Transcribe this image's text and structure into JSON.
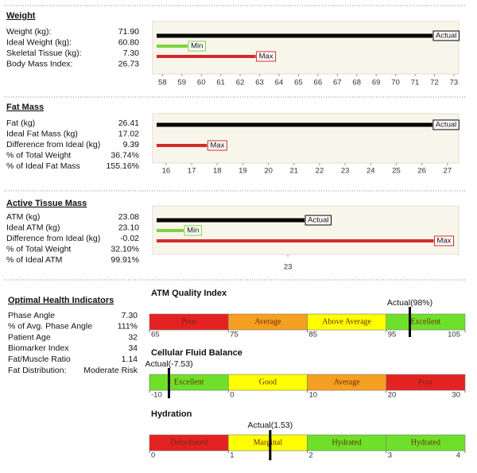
{
  "sections": [
    {
      "title": "Weight",
      "rows": [
        {
          "label": "Weight (kg):",
          "value": "71.90"
        },
        {
          "label": "Ideal Weight (kg):",
          "value": "60.80"
        },
        {
          "label": "Skeletal Tissue (kg):",
          "value": "7.30"
        },
        {
          "label": "Body Mass Index:",
          "value": "26.73"
        }
      ],
      "bars": [
        {
          "label": "Actual",
          "value": 71.9,
          "color": "#000000"
        },
        {
          "label": "Min",
          "value": 59.3,
          "color": "#7dd33a"
        },
        {
          "label": "Max",
          "value": 62.8,
          "color": "#d42a2a"
        }
      ],
      "xlim": [
        57.7,
        73.25
      ],
      "xticks": [
        58,
        59,
        60,
        61,
        62,
        63,
        64,
        65,
        66,
        67,
        68,
        69,
        70,
        71,
        72,
        73
      ]
    },
    {
      "title": "Fat Mass",
      "rows": [
        {
          "label": "Fat (kg)",
          "value": "26.41"
        },
        {
          "label": "Ideal Fat Mass (kg)",
          "value": "17.02"
        },
        {
          "label": "Difference from Ideal (kg)",
          "value": "9.39"
        },
        {
          "label": "% of Total Weight",
          "value": "36.74%"
        },
        {
          "label": "% of Ideal Fat Mass",
          "value": "155.16%"
        }
      ],
      "bars": [
        {
          "label": "Actual",
          "value": 26.41,
          "color": "#000000"
        },
        {
          "label": "Max",
          "value": 17.6,
          "color": "#d42a2a"
        }
      ],
      "xlim": [
        15.63,
        27.44
      ],
      "xticks": [
        16,
        17,
        18,
        19,
        20,
        21,
        22,
        23,
        24,
        25,
        26,
        27
      ]
    },
    {
      "title": "Active Tissue Mass",
      "rows": [
        {
          "label": "ATM (kg)",
          "value": "23.08"
        },
        {
          "label": "Ideal ATM (kg)",
          "value": "23.10"
        },
        {
          "label": "Difference from Ideal (kg)",
          "value": "-0.02"
        },
        {
          "label": "% of Total Weight",
          "value": "32.10%"
        },
        {
          "label": "% of Ideal ATM",
          "value": "99.91%"
        }
      ],
      "bars": [
        {
          "label": "Actual",
          "value": 23.08,
          "color": "#000000"
        },
        {
          "label": "Min",
          "value": 22.5,
          "color": "#7dd33a"
        },
        {
          "label": "Max",
          "value": 23.7,
          "color": "#d42a2a"
        }
      ],
      "xlim": [
        22.37,
        23.82
      ],
      "xticks": [
        23
      ]
    }
  ],
  "health": {
    "title": "Optimal Health Indicators",
    "rows": [
      {
        "label": "Phase Angle",
        "value": "7.30"
      },
      {
        "label": "% of Avg. Phase Angle",
        "value": "111%"
      },
      {
        "label": "Patient Age",
        "value": "32"
      },
      {
        "label": "Biomarker Index",
        "value": "34"
      },
      {
        "label": "Fat/Muscle Ratio",
        "value": "1.14"
      },
      {
        "label": "Fat Distribution:",
        "value": "Moderate Risk"
      }
    ]
  },
  "gauges": [
    {
      "title": "ATM Quality Index",
      "marker": {
        "value": 98,
        "label": "Actual(98%)"
      },
      "bands": [
        {
          "label": "Poor",
          "from": 65,
          "to": 75,
          "color": "#e52222"
        },
        {
          "label": "Average",
          "from": 75,
          "to": 85,
          "color": "#f5a021"
        },
        {
          "label": "Above Average",
          "from": 85,
          "to": 95,
          "color": "#ffff00"
        },
        {
          "label": "Excellent",
          "from": 95,
          "to": 105,
          "color": "#6ee02a"
        }
      ],
      "xlim": [
        65,
        105
      ],
      "xticks": [
        65,
        75,
        85,
        95,
        105
      ]
    },
    {
      "title": "Cellular Fluid Balance",
      "marker": {
        "value": -7.53,
        "label": "Actual(-7.53)"
      },
      "bands": [
        {
          "label": "Excellent",
          "from": -10,
          "to": 0,
          "color": "#6ee02a"
        },
        {
          "label": "Good",
          "from": 0,
          "to": 10,
          "color": "#ffff00"
        },
        {
          "label": "Average",
          "from": 10,
          "to": 20,
          "color": "#f5a021"
        },
        {
          "label": "Poor",
          "from": 20,
          "to": 30,
          "color": "#e52222"
        }
      ],
      "xlim": [
        -10,
        30
      ],
      "xticks": [
        -10,
        0,
        10,
        20,
        30
      ]
    },
    {
      "title": "Hydration",
      "marker": {
        "value": 1.53,
        "label": "Actual(1.53)"
      },
      "bands": [
        {
          "label": "Dehydrated",
          "from": 0,
          "to": 1,
          "color": "#e52222"
        },
        {
          "label": "Marginal",
          "from": 1,
          "to": 2,
          "color": "#ffff00"
        },
        {
          "label": "Hydrated",
          "from": 2,
          "to": 3,
          "color": "#6ee02a"
        },
        {
          "label": "Hydrated",
          "from": 3,
          "to": 4,
          "color": "#6ee02a"
        }
      ],
      "xlim": [
        0,
        4
      ],
      "xticks": [
        0,
        1,
        2,
        3,
        4
      ]
    }
  ]
}
